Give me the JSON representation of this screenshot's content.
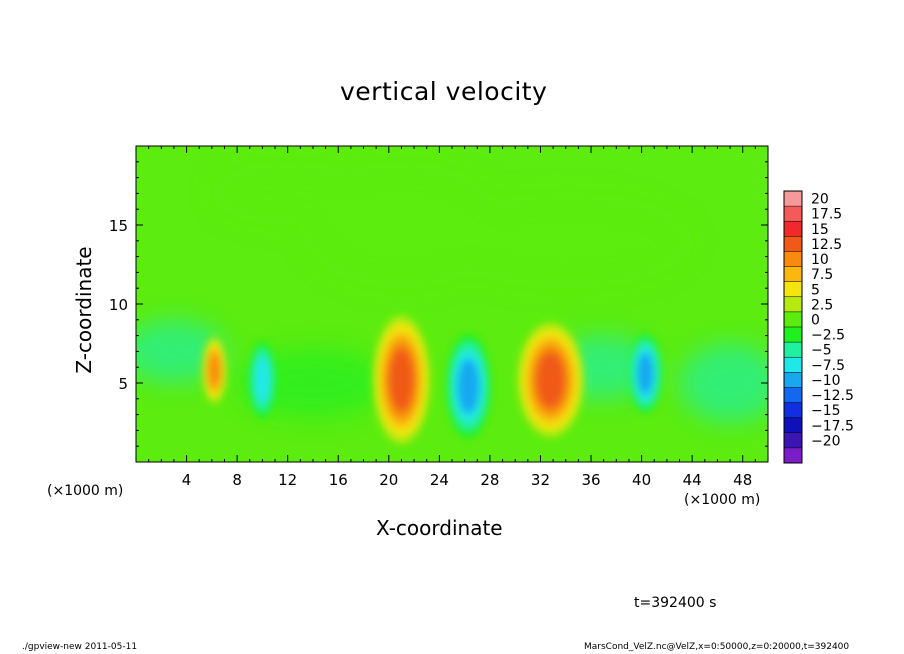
{
  "chart_data": {
    "type": "heatmap",
    "title": "vertical velocity",
    "xlabel": "X-coordinate",
    "ylabel": "Z-coordinate",
    "x_units": "(×1000 m)",
    "y_units": "(×1000 m)",
    "xlim": [
      0,
      50
    ],
    "ylim": [
      0,
      20
    ],
    "x_ticks": [
      4,
      8,
      12,
      16,
      20,
      24,
      28,
      32,
      36,
      40,
      44,
      48
    ],
    "y_ticks": [
      5,
      10,
      15
    ],
    "colorbar": {
      "levels": [
        "20",
        "17.5",
        "15",
        "12.5",
        "10",
        "7.5",
        "5",
        "2.5",
        "0",
        "-2.5",
        "-5",
        "-7.5",
        "-10",
        "-12.5",
        "-15",
        "-17.5",
        "-20"
      ],
      "colors": [
        "#f49a9a",
        "#f45a5a",
        "#f02a2a",
        "#f05a18",
        "#f88a10",
        "#f8b810",
        "#f4e410",
        "#b4ea10",
        "#5cec10",
        "#20f020",
        "#20f0a0",
        "#20e8e8",
        "#18a8f0",
        "#1468f0",
        "#1030e0",
        "#1010b8",
        "#3c14b4",
        "#7a1cc8"
      ]
    },
    "features": [
      {
        "x": 6.2,
        "z": 5.8,
        "w": 0.8,
        "top": 7.6,
        "bottom": 3.8,
        "value": 11
      },
      {
        "x": 10,
        "z": 5.2,
        "w": 0.9,
        "top": 7.5,
        "bottom": 3.0,
        "value": -8
      },
      {
        "x": 21,
        "z": 5.2,
        "w": 1.9,
        "top": 8.8,
        "bottom": 1.4,
        "value": 13
      },
      {
        "x": 26.3,
        "z": 4.8,
        "w": 1.5,
        "top": 7.8,
        "bottom": 1.8,
        "value": -12
      },
      {
        "x": 32.8,
        "z": 5.2,
        "w": 2.2,
        "top": 8.2,
        "bottom": 1.6,
        "value": 13
      },
      {
        "x": 40.3,
        "z": 5.6,
        "w": 1.1,
        "top": 8.0,
        "bottom": 3.4,
        "value": -11
      }
    ]
  },
  "time_label": "t=392400 s",
  "footer_left": "./gpview-new 2011-05-11",
  "footer_right": "MarsCond_VelZ.nc@VelZ,x=0:50000,z=0:20000,t=392400"
}
